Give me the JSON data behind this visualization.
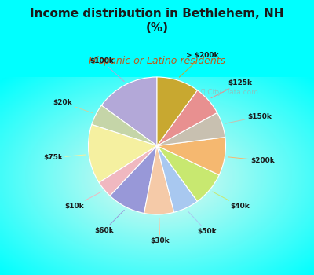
{
  "title": "Income distribution in Bethlehem, NH\n(%)",
  "subtitle": "Hispanic or Latino residents",
  "background_color": "#00FFFF",
  "title_color": "#1a1a1a",
  "subtitle_color": "#c05818",
  "watermark": "City-Data.com",
  "labels": [
    "$100k",
    "$20k",
    "$75k",
    "$10k",
    "$60k",
    "$30k",
    "$50k",
    "$40k",
    "$200k",
    "$150k",
    "$125k",
    "> $200k"
  ],
  "sizes": [
    15,
    5,
    14,
    4,
    9,
    7,
    6,
    8,
    9,
    6,
    7,
    10
  ],
  "colors": [
    "#b3a8d8",
    "#c5d5a8",
    "#f5f0a0",
    "#f0b8c0",
    "#9898d8",
    "#f5caa8",
    "#a8c8f0",
    "#c8e870",
    "#f5b870",
    "#c8c0b0",
    "#e89090",
    "#c8a830"
  ],
  "start_angle": 90,
  "title_fontsize": 11,
  "subtitle_fontsize": 9
}
